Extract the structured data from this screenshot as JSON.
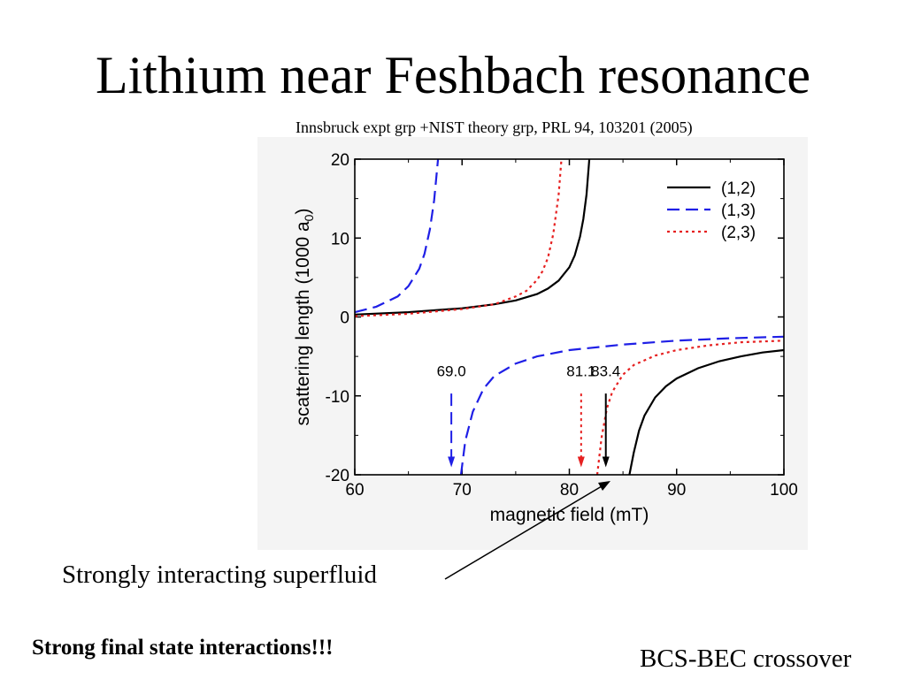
{
  "slide": {
    "title": "Lithium near Feshbach resonance",
    "citation": "Innsbruck expt grp +NIST theory grp, PRL 94, 103201 (2005)",
    "annotation": "Strongly interacting superfluid",
    "bold_note": "Strong final state interactions!!!",
    "crossover_note": "BCS-BEC crossover"
  },
  "chart_data": {
    "type": "line",
    "title": "",
    "xlabel": "magnetic field (mT)",
    "ylabel": "scattering length (1000 a0)",
    "xlim": [
      60,
      100
    ],
    "ylim": [
      -20,
      20
    ],
    "xticks": [
      "60",
      "70",
      "80",
      "90",
      "100"
    ],
    "yticks": [
      "20",
      "10",
      "0",
      "-10",
      "-20"
    ],
    "legend_position": "top-right",
    "grid": false,
    "series": [
      {
        "name": "(1,2)",
        "color": "#000000",
        "style": "solid",
        "resonance": 83.4,
        "branches": [
          {
            "x": [
              60,
              65,
              70,
              73,
              75,
              77,
              78,
              79,
              80,
              80.5,
              81,
              81.3,
              81.6,
              81.9,
              82.2
            ],
            "y": [
              0.3,
              0.6,
              1.1,
              1.6,
              2.1,
              2.9,
              3.6,
              4.6,
              6.3,
              7.8,
              10.2,
              12.4,
              15.5,
              20.6,
              20.6
            ]
          },
          {
            "x": [
              85.6,
              86,
              86.5,
              87,
              88,
              89,
              90,
              92,
              94,
              96,
              98,
              100
            ],
            "y": [
              -20,
              -17.2,
              -14.4,
              -12.5,
              -10.2,
              -8.8,
              -7.8,
              -6.5,
              -5.6,
              -5.0,
              -4.5,
              -4.2
            ]
          }
        ]
      },
      {
        "name": "(1,3)",
        "color": "#1f1fe6",
        "style": "dashed",
        "resonance": 69.0,
        "branches": [
          {
            "x": [
              60,
              62,
              64,
              65,
              66,
              66.5,
              67,
              67.4,
              67.8,
              68.1
            ],
            "y": [
              0.6,
              1.3,
              2.6,
              3.9,
              6.1,
              8.0,
              11.1,
              14.8,
              20.6,
              20.6
            ]
          },
          {
            "x": [
              69.9,
              70.3,
              71,
              72,
              73,
              75,
              77,
              80,
              85,
              90,
              95,
              100
            ],
            "y": [
              -20,
              -15.7,
              -12.0,
              -9.1,
              -7.5,
              -5.9,
              -5.0,
              -4.2,
              -3.5,
              -3.0,
              -2.7,
              -2.5
            ]
          }
        ]
      },
      {
        "name": "(2,3)",
        "color": "#e62020",
        "style": "dotted",
        "resonance": 81.1,
        "branches": [
          {
            "x": [
              60,
              65,
              70,
              73,
              75,
              76,
              77,
              77.5,
              78,
              78.5,
              79,
              79.3,
              79.6
            ],
            "y": [
              0.1,
              0.4,
              1.0,
              1.6,
              2.6,
              3.3,
              4.7,
              5.8,
              7.5,
              10.5,
              15.5,
              20.6,
              20.6
            ]
          },
          {
            "x": [
              82.6,
              83,
              83.5,
              84,
              85,
              86,
              88,
              90,
              93,
              96,
              100
            ],
            "y": [
              -20,
              -15.3,
              -11.6,
              -9.5,
              -7.3,
              -6.1,
              -4.9,
              -4.2,
              -3.6,
              -3.2,
              -3.0
            ]
          }
        ]
      }
    ],
    "annotations": [
      {
        "text": "69.0",
        "x": 69.0,
        "color": "#1f1fe6",
        "style": "dashed"
      },
      {
        "text": "81.1",
        "x": 81.1,
        "color": "#e62020",
        "style": "dotted"
      },
      {
        "text": "83.4",
        "x": 83.4,
        "color": "#000000",
        "style": "solid"
      }
    ]
  }
}
